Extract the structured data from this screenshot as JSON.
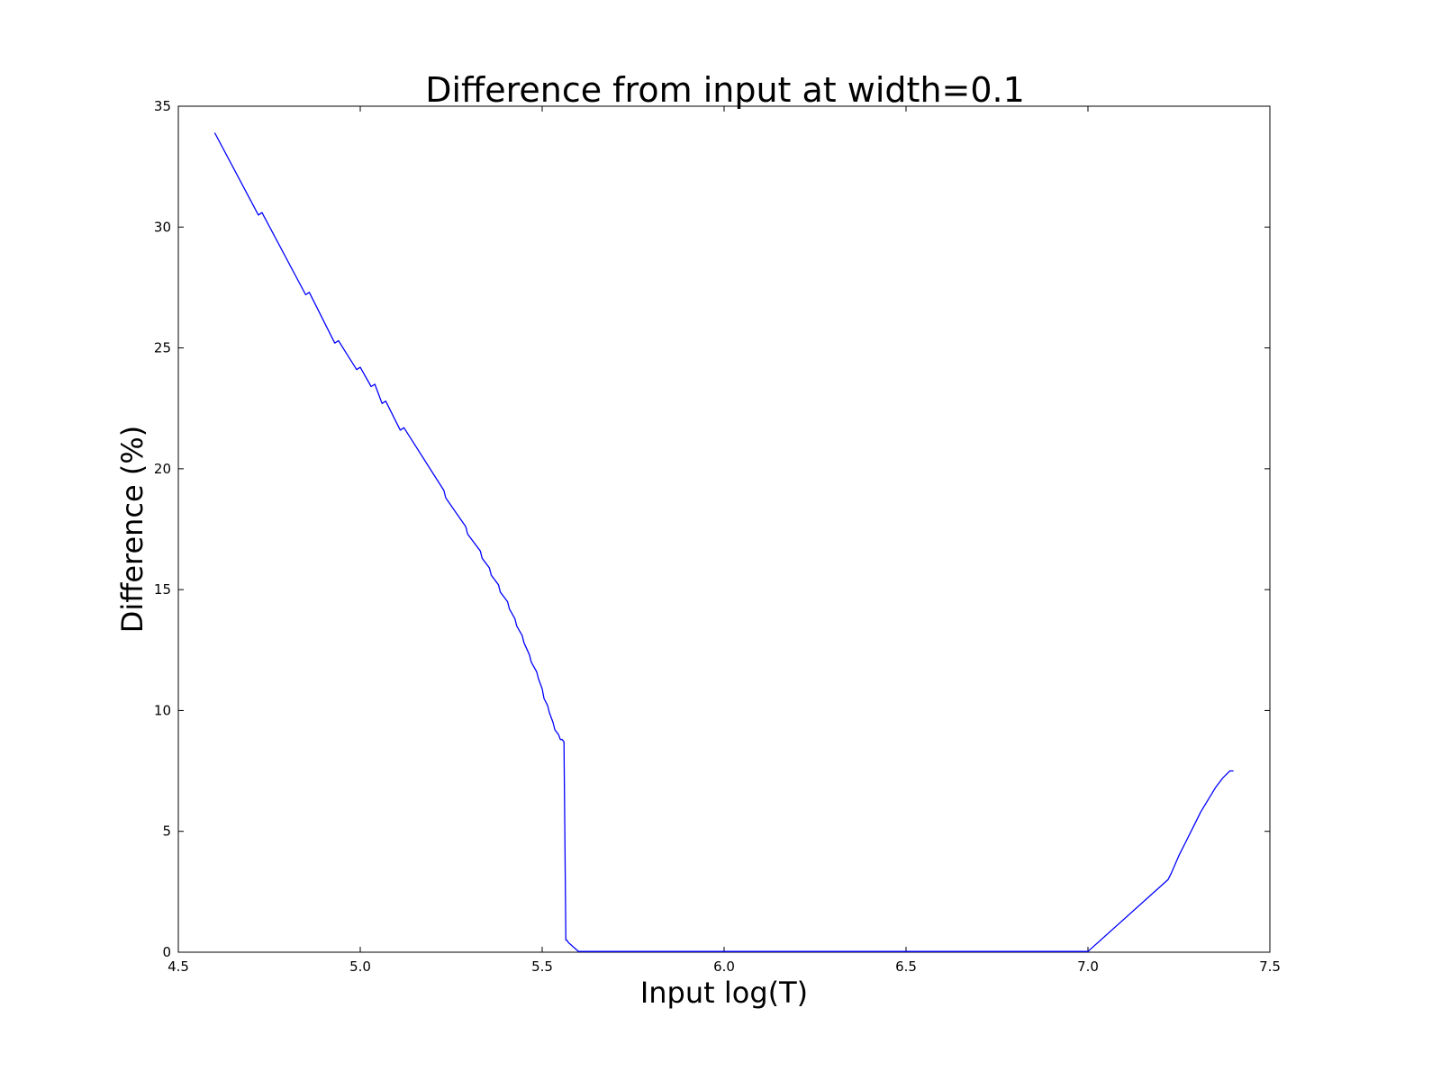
{
  "chart_data": {
    "type": "line",
    "title": "Difference from input at width=0.1",
    "xlabel": "Input log(T)",
    "ylabel": "Difference (%)",
    "xlim": [
      4.5,
      7.5
    ],
    "ylim": [
      0,
      35
    ],
    "xticks": [
      "4.5",
      "5.0",
      "5.5",
      "6.0",
      "6.5",
      "7.0",
      "7.5"
    ],
    "yticks": [
      "0",
      "5",
      "10",
      "15",
      "20",
      "25",
      "30",
      "35"
    ],
    "grid": false,
    "series": [
      {
        "color": "#0000ff",
        "x": [
          4.6,
          4.72,
          4.73,
          4.85,
          4.86,
          4.93,
          4.94,
          4.99,
          5.0,
          5.03,
          5.04,
          5.06,
          5.07,
          5.11,
          5.12,
          5.23,
          5.235,
          5.29,
          5.295,
          5.33,
          5.335,
          5.355,
          5.36,
          5.38,
          5.385,
          5.405,
          5.41,
          5.425,
          5.43,
          5.445,
          5.45,
          5.465,
          5.47,
          5.485,
          5.49,
          5.5,
          5.505,
          5.515,
          5.52,
          5.53,
          5.535,
          5.545,
          5.55,
          5.555,
          5.56,
          5.565,
          5.568,
          5.572,
          5.6,
          7.0,
          7.22,
          7.23,
          7.25,
          7.27,
          7.29,
          7.31,
          7.33,
          7.35,
          7.37,
          7.39,
          7.4
        ],
        "y": [
          33.9,
          30.5,
          30.6,
          27.2,
          27.3,
          25.2,
          25.3,
          24.1,
          24.2,
          23.4,
          23.5,
          22.7,
          22.8,
          21.6,
          21.7,
          19.1,
          18.8,
          17.6,
          17.3,
          16.6,
          16.3,
          15.9,
          15.6,
          15.2,
          14.9,
          14.5,
          14.2,
          13.8,
          13.5,
          13.1,
          12.8,
          12.3,
          12.0,
          11.6,
          11.3,
          10.9,
          10.5,
          10.2,
          9.9,
          9.5,
          9.2,
          9.0,
          8.8,
          8.8,
          8.7,
          0.5,
          0.5,
          0.4,
          0.03,
          0.03,
          3.0,
          3.3,
          4.0,
          4.6,
          5.2,
          5.8,
          6.3,
          6.8,
          7.2,
          7.5,
          7.5
        ]
      }
    ]
  }
}
